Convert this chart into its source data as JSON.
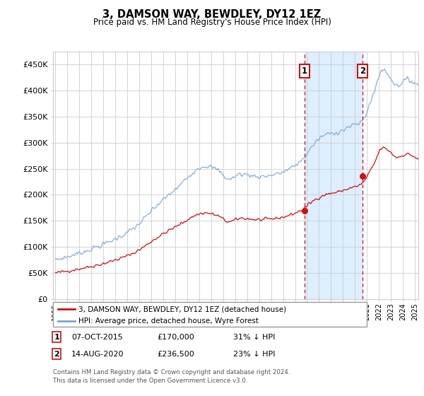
{
  "title": "3, DAMSON WAY, BEWDLEY, DY12 1EZ",
  "subtitle": "Price paid vs. HM Land Registry's House Price Index (HPI)",
  "yticks": [
    0,
    50000,
    100000,
    150000,
    200000,
    250000,
    300000,
    350000,
    400000,
    450000
  ],
  "ytick_labels": [
    "£0",
    "£50K",
    "£100K",
    "£150K",
    "£200K",
    "£250K",
    "£300K",
    "£350K",
    "£400K",
    "£450K"
  ],
  "xmin": 1994.8,
  "xmax": 2025.3,
  "ymin": 0,
  "ymax": 475000,
  "hpi_color": "#7aa6d4",
  "price_color": "#cc1111",
  "sale1_x": 2015.77,
  "sale1_y": 170000,
  "sale2_x": 2020.62,
  "sale2_y": 236500,
  "shade_color": "#ddeeff",
  "legend_label1": "3, DAMSON WAY, BEWDLEY, DY12 1EZ (detached house)",
  "legend_label2": "HPI: Average price, detached house, Wyre Forest",
  "table_row1": [
    "1",
    "07-OCT-2015",
    "£170,000",
    "31% ↓ HPI"
  ],
  "table_row2": [
    "2",
    "14-AUG-2020",
    "£236,500",
    "23% ↓ HPI"
  ],
  "footer": "Contains HM Land Registry data © Crown copyright and database right 2024.\nThis data is licensed under the Open Government Licence v3.0.",
  "grid_color": "#cccccc",
  "annotation_box_color": "#cc1111"
}
